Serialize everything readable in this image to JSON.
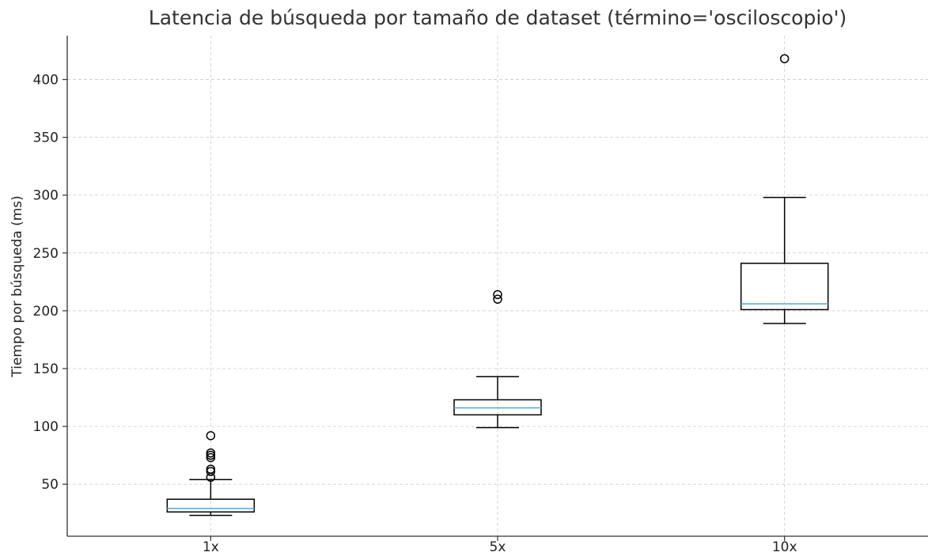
{
  "chart_data": {
    "type": "box",
    "title": "Latencia de búsqueda por tamaño de dataset (término='osciloscopio')",
    "xlabel": "",
    "ylabel": "Tiempo por búsqueda (ms)",
    "categories": [
      "1x",
      "5x",
      "10x"
    ],
    "yticks": [
      50,
      100,
      150,
      200,
      250,
      300,
      350,
      400
    ],
    "ylim": [
      5,
      438
    ],
    "grid": true,
    "boxes": [
      {
        "category": "1x",
        "whisker_low": 23,
        "q1": 26,
        "median": 29,
        "q3": 37,
        "whisker_high": 54,
        "outliers": [
          56,
          61,
          63,
          73,
          75,
          77,
          92
        ]
      },
      {
        "category": "5x",
        "whisker_low": 99,
        "q1": 110,
        "median": 116,
        "q3": 123,
        "whisker_high": 143,
        "outliers": [
          210,
          214
        ]
      },
      {
        "category": "10x",
        "whisker_low": 189,
        "q1": 201,
        "median": 206,
        "q3": 241,
        "whisker_high": 298,
        "outliers": [
          418
        ]
      }
    ],
    "colors": {
      "box": "#000000",
      "median": "#5aaee0",
      "grid": "#cccccc",
      "axis": "#333333"
    }
  }
}
